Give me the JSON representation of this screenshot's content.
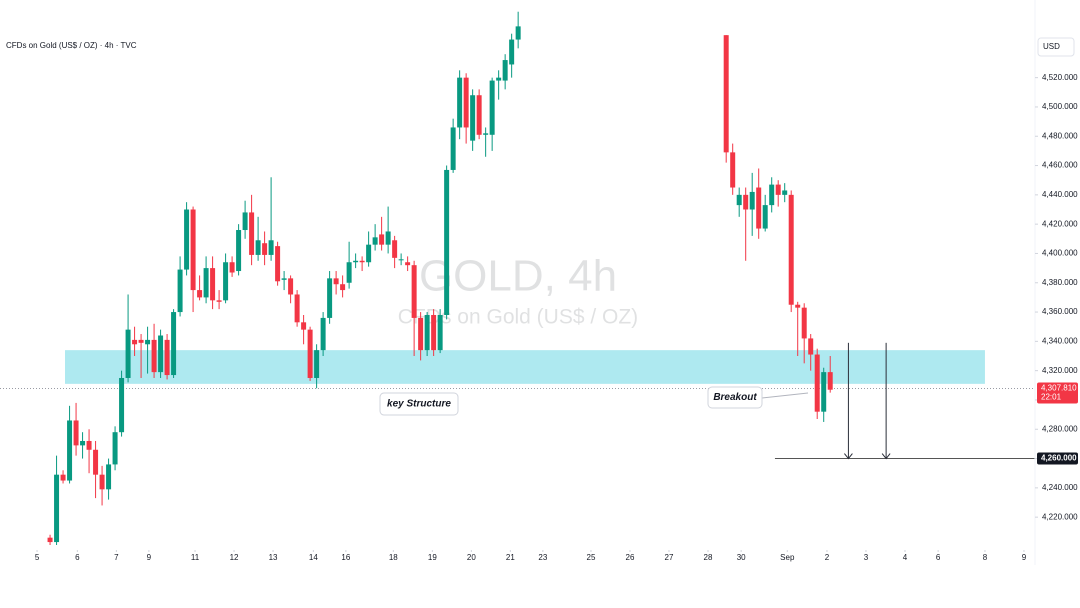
{
  "chart_data": {
    "type": "candlestick",
    "title": "CFDs on Gold (US$ / OZ) · 4h · TVC",
    "watermark": {
      "symbol": "GOLD, 4h",
      "description": "CFDs on Gold (US$ / OZ)"
    },
    "currency": "USD",
    "up_color": "#089981",
    "down_color": "#f23645",
    "x": [
      0,
      1,
      2,
      3,
      4,
      5,
      6,
      7,
      8,
      9,
      10,
      11,
      12,
      13,
      14,
      15,
      16,
      17,
      18,
      19,
      20,
      21,
      22,
      23,
      24,
      25,
      26,
      27,
      28,
      29,
      30,
      31,
      32,
      33,
      34,
      35,
      36,
      37,
      38,
      39,
      40,
      41,
      42,
      43,
      44,
      45,
      46,
      47,
      48,
      49,
      50,
      51,
      52,
      53,
      54,
      55,
      56,
      57,
      58,
      59,
      60,
      61,
      62,
      63,
      64,
      65,
      66,
      67,
      68,
      69,
      70,
      71,
      72,
      104,
      105,
      106,
      107,
      108,
      109,
      110,
      111,
      112,
      113,
      114,
      115,
      116,
      117,
      118,
      119,
      120
    ],
    "open": [
      4206,
      4203,
      4249,
      4245,
      4286,
      4269,
      4272,
      4266,
      4249,
      4239,
      4256,
      4278,
      4315,
      4341,
      4341,
      4338,
      4341,
      4319,
      4341,
      4317,
      4360,
      4389,
      4430,
      4375,
      4370,
      4390,
      4368,
      4368,
      4394,
      4388,
      4416,
      4428,
      4399,
      4407,
      4399,
      4405,
      4382,
      4383,
      4372,
      4353,
      4348,
      4315,
      4334,
      4356,
      4383,
      4379,
      4380,
      4394,
      4395,
      4394,
      4406,
      4413,
      4406,
      4409,
      4396,
      4394,
      4392,
      4356,
      4334,
      4358,
      4334,
      4358,
      4457,
      4486,
      4520,
      4477,
      4508,
      4481,
      4481,
      4518,
      4518,
      4529,
      4546,
      4549,
      4469,
      4433,
      4440,
      4430,
      4445,
      4417,
      4433,
      4447,
      4440,
      4440,
      4365,
      4363,
      4342,
      4331,
      4292,
      4319
    ],
    "high": [
      4208,
      4262,
      4252,
      4296,
      4298,
      4278,
      4280,
      4272,
      4255,
      4260,
      4282,
      4320,
      4372,
      4350,
      4345,
      4350,
      4352,
      4348,
      4345,
      4362,
      4398,
      4435,
      4432,
      4385,
      4398,
      4398,
      4375,
      4400,
      4398,
      4420,
      4436,
      4440,
      4425,
      4415,
      4452,
      4408,
      4388,
      4385,
      4375,
      4358,
      4350,
      4338,
      4360,
      4388,
      4388,
      4385,
      4408,
      4400,
      4398,
      4415,
      4420,
      4425,
      4432,
      4412,
      4400,
      4398,
      4395,
      4360,
      4360,
      4362,
      4362,
      4460,
      4492,
      4525,
      4523,
      4512,
      4512,
      4486,
      4520,
      4525,
      4536,
      4550,
      4565,
      4549,
      4475,
      4445,
      4445,
      4455,
      4458,
      4440,
      4452,
      4450,
      4448,
      4443,
      4367,
      4366,
      4345,
      4335,
      4322,
      4330
    ],
    "low": [
      4201,
      4201,
      4243,
      4243,
      4262,
      4260,
      4250,
      4233,
      4228,
      4232,
      4252,
      4275,
      4312,
      4330,
      4315,
      4318,
      4315,
      4315,
      4314,
      4315,
      4357,
      4385,
      4360,
      4368,
      4366,
      4362,
      4362,
      4366,
      4384,
      4385,
      4410,
      4392,
      4395,
      4392,
      4395,
      4378,
      4375,
      4366,
      4350,
      4338,
      4313,
      4308,
      4330,
      4352,
      4372,
      4370,
      4376,
      4390,
      4388,
      4391,
      4402,
      4402,
      4400,
      4390,
      4392,
      4388,
      4330,
      4327,
      4330,
      4330,
      4332,
      4355,
      4455,
      4478,
      4475,
      4470,
      4478,
      4466,
      4470,
      4505,
      4512,
      4520,
      4540,
      4462,
      4440,
      4425,
      4395,
      4412,
      4410,
      4415,
      4428,
      4432,
      4435,
      4360,
      4330,
      4325,
      4320,
      4287,
      4285,
      4305
    ],
    "close": [
      4203,
      4249,
      4245,
      4286,
      4269,
      4272,
      4266,
      4249,
      4239,
      4256,
      4278,
      4315,
      4348,
      4338,
      4339,
      4341,
      4319,
      4344,
      4317,
      4360,
      4389,
      4430,
      4375,
      4370,
      4390,
      4368,
      4367,
      4394,
      4387,
      4416,
      4428,
      4399,
      4409,
      4399,
      4409,
      4381,
      4383,
      4372,
      4353,
      4348,
      4315,
      4334,
      4356,
      4383,
      4379,
      4375,
      4394,
      4395,
      4394,
      4406,
      4411,
      4406,
      4415,
      4397,
      4396,
      4392,
      4356,
      4334,
      4358,
      4334,
      4358,
      4457,
      4486,
      4520,
      4486,
      4508,
      4481,
      4482,
      4518,
      4520,
      4532,
      4546,
      4555,
      4469,
      4445,
      4440,
      4430,
      4442,
      4417,
      4433,
      4447,
      4440,
      4443,
      4365,
      4363,
      4342,
      4331,
      4292,
      4319,
      4307
    ],
    "xlim": [
      -7.7,
      151.5
    ],
    "ylim": [
      4201,
      4573
    ],
    "xticks": [
      {
        "value": -2,
        "label": "5"
      },
      {
        "value": 4.2,
        "label": "6"
      },
      {
        "value": 10.2,
        "label": "7"
      },
      {
        "value": 15.2,
        "label": "9"
      },
      {
        "value": 22.3,
        "label": "11"
      },
      {
        "value": 28.3,
        "label": "12"
      },
      {
        "value": 34.3,
        "label": "13"
      },
      {
        "value": 40.5,
        "label": "14"
      },
      {
        "value": 45.5,
        "label": "16"
      },
      {
        "value": 52.8,
        "label": "18"
      },
      {
        "value": 58.8,
        "label": "19"
      },
      {
        "value": 64.8,
        "label": "20"
      },
      {
        "value": 70.8,
        "label": "21"
      },
      {
        "value": 75.8,
        "label": "23"
      },
      {
        "value": 83.2,
        "label": "25"
      },
      {
        "value": 89.2,
        "label": "26"
      },
      {
        "value": 95.2,
        "label": "27"
      },
      {
        "value": 101.2,
        "label": "28"
      },
      {
        "value": 106.3,
        "label": "30"
      },
      {
        "value": 113.4,
        "label": "Sep"
      },
      {
        "value": 119.5,
        "label": "2"
      },
      {
        "value": 125.5,
        "label": "3"
      },
      {
        "value": 131.5,
        "label": "4"
      },
      {
        "value": 136.6,
        "label": "6"
      },
      {
        "value": 143.8,
        "label": "8"
      },
      {
        "value": 149.8,
        "label": "9"
      }
    ],
    "yticks": [
      {
        "value": 4220,
        "label": "4,220.000"
      },
      {
        "value": 4240,
        "label": "4,240.000"
      },
      {
        "value": 4260,
        "label": "4,260.000"
      },
      {
        "value": 4280,
        "label": "4,280.000"
      },
      {
        "value": 4300,
        "label": "4,300.000"
      },
      {
        "value": 4320,
        "label": "4,320.000"
      },
      {
        "value": 4340,
        "label": "4,340.000"
      },
      {
        "value": 4360,
        "label": "4,360.000"
      },
      {
        "value": 4380,
        "label": "4,380.000"
      },
      {
        "value": 4400,
        "label": "4,400.000"
      },
      {
        "value": 4420,
        "label": "4,420.000"
      },
      {
        "value": 4440,
        "label": "4,440.000"
      },
      {
        "value": 4460,
        "label": "4,460.000"
      },
      {
        "value": 4480,
        "label": "4,480.000"
      },
      {
        "value": 4500,
        "label": "4,500.000"
      },
      {
        "value": 4520,
        "label": "4,520.000"
      }
    ],
    "zone": {
      "x": [
        2.3,
        143.8
      ],
      "low": 4311,
      "high": 4334,
      "color": "#aee9f0"
    },
    "current_price": {
      "value": 4307.81,
      "label": "4,307.810",
      "countdown": "22:01"
    },
    "target": {
      "value": 4260,
      "label": "4,260.000",
      "x_start": 111.5
    },
    "arrows": [
      {
        "x": 122.8,
        "from": 4339,
        "to": 4260
      },
      {
        "x": 128.6,
        "from": 4339,
        "to": 4260
      }
    ],
    "annotations": [
      {
        "text": "key Structure"
      },
      {
        "text": "Breakout"
      }
    ]
  }
}
